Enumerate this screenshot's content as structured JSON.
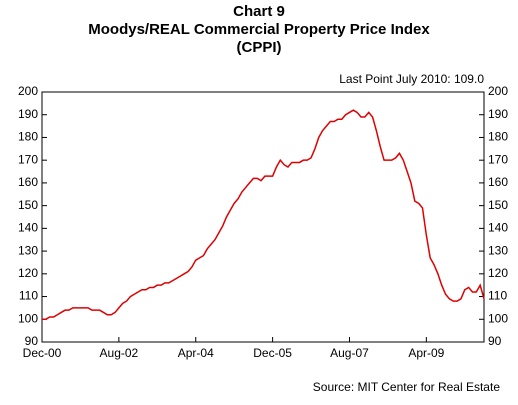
{
  "chart_data": {
    "type": "line",
    "title": [
      "Chart 9",
      "Moodys/REAL Commercial Property Price Index",
      "(CPPI)"
    ],
    "annotation": "Last Point July 2010: 109.0",
    "source": "Source: MIT Center for Real Estate",
    "categories": [
      "Dec-00",
      null,
      null,
      null,
      null,
      null,
      null,
      null,
      null,
      null,
      null,
      null,
      null,
      null,
      null,
      null,
      null,
      null,
      null,
      null,
      "Aug-02",
      null,
      null,
      null,
      null,
      null,
      null,
      null,
      null,
      null,
      null,
      null,
      null,
      null,
      null,
      null,
      null,
      null,
      null,
      null,
      "Apr-04",
      null,
      null,
      null,
      null,
      null,
      null,
      null,
      null,
      null,
      null,
      null,
      null,
      null,
      null,
      null,
      null,
      null,
      null,
      null,
      "Dec-05",
      null,
      null,
      null,
      null,
      null,
      null,
      null,
      null,
      null,
      null,
      null,
      null,
      null,
      null,
      null,
      null,
      null,
      null,
      null,
      "Aug-07",
      null,
      null,
      null,
      null,
      null,
      null,
      null,
      null,
      null,
      null,
      null,
      null,
      null,
      null,
      null,
      null,
      null,
      null,
      null,
      "Apr-09",
      null,
      null,
      null,
      null,
      null,
      null,
      null,
      null,
      null,
      null,
      null,
      null,
      null,
      null,
      null
    ],
    "series": [
      {
        "name": "CPPI",
        "color": "#e00000",
        "values": [
          100,
          100,
          101,
          101,
          102,
          103,
          104,
          104,
          105,
          105,
          105,
          105,
          105,
          104,
          104,
          104,
          103,
          102,
          102,
          103,
          105,
          107,
          108,
          110,
          111,
          112,
          113,
          113,
          114,
          114,
          115,
          115,
          116,
          116,
          117,
          118,
          119,
          120,
          121,
          123,
          126,
          127,
          128,
          131,
          133,
          135,
          138,
          141,
          145,
          148,
          151,
          153,
          156,
          158,
          160,
          162,
          162,
          161,
          163,
          163,
          163,
          167,
          170,
          168,
          167,
          169,
          169,
          169,
          170,
          170,
          171,
          175,
          180,
          183,
          185,
          187,
          187,
          188,
          188,
          190,
          191,
          192,
          191,
          189,
          189,
          191,
          189,
          183,
          176,
          170,
          170,
          170,
          171,
          173,
          170,
          165,
          160,
          152,
          151,
          149,
          137,
          127,
          124,
          120,
          115,
          111,
          109,
          108,
          108,
          109,
          113,
          114,
          112,
          112,
          115,
          109
        ]
      }
    ],
    "ylim": [
      90,
      200
    ],
    "yticks": [
      90,
      100,
      110,
      120,
      130,
      140,
      150,
      160,
      170,
      180,
      190,
      200
    ],
    "y2lim": [
      90,
      200
    ],
    "y2ticks": [
      90,
      100,
      110,
      120,
      130,
      140,
      150,
      160,
      170,
      180,
      190,
      200
    ]
  }
}
